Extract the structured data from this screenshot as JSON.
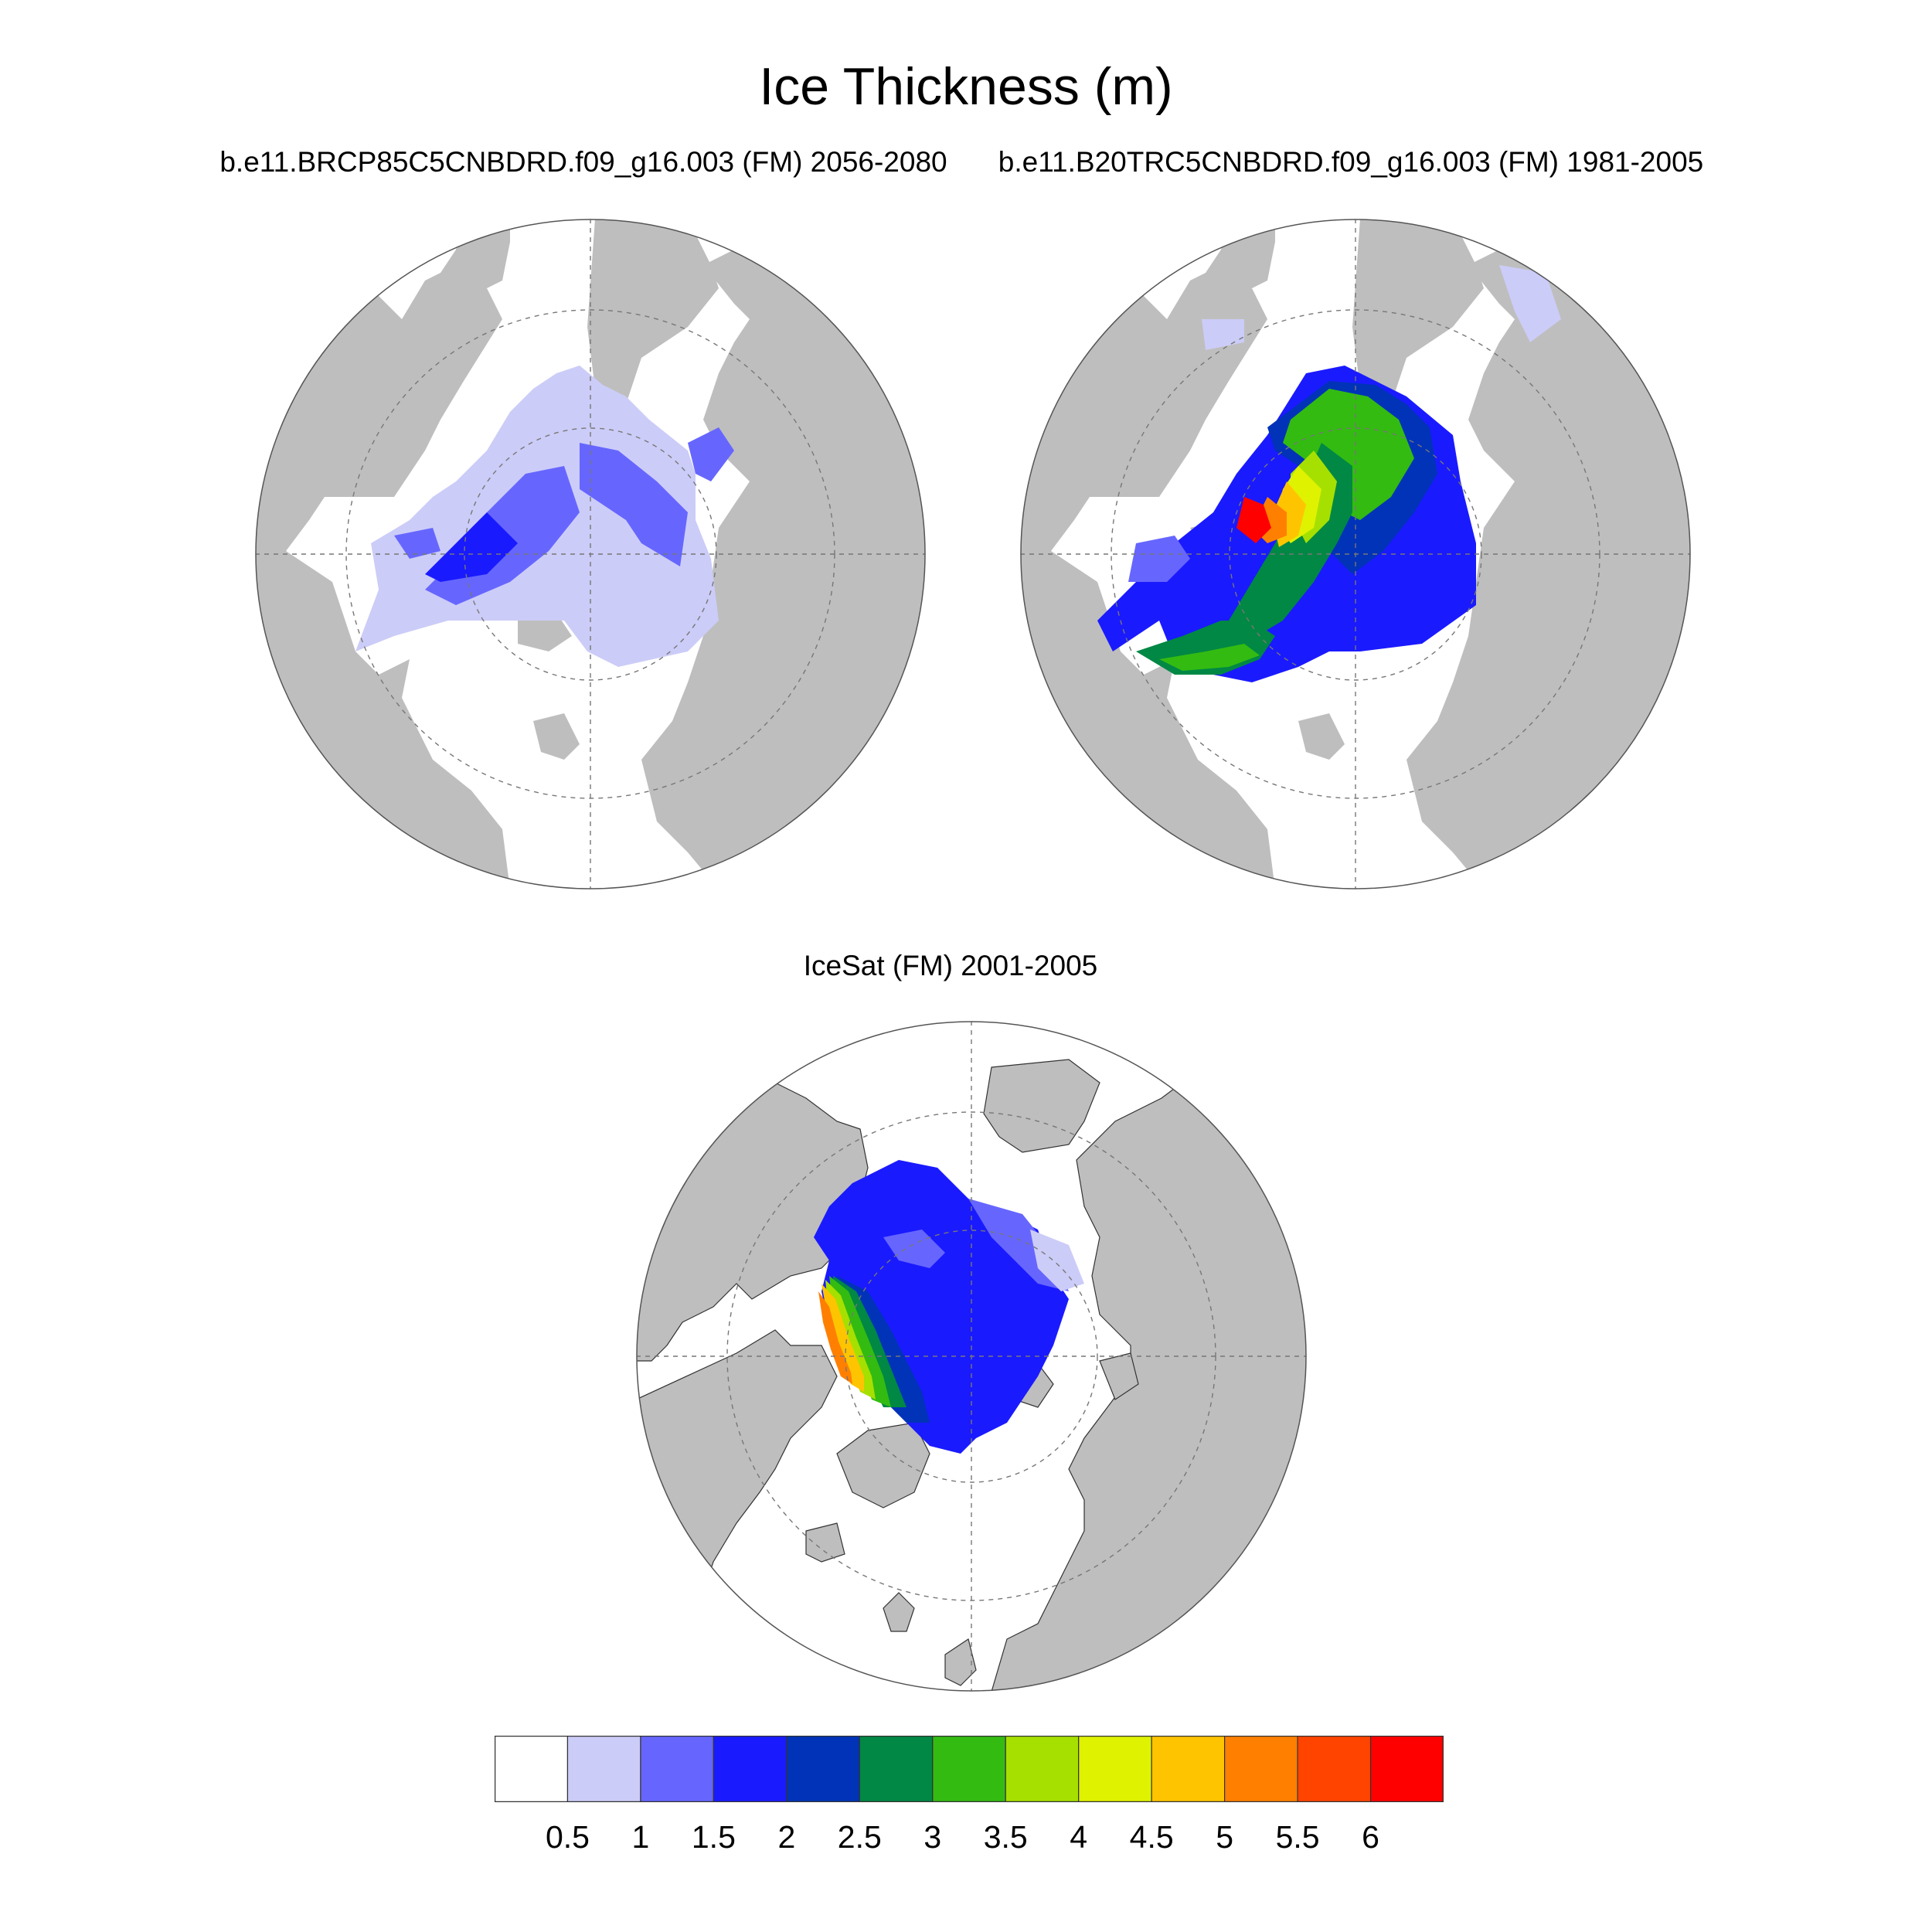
{
  "title": "Ice Thickness (m)",
  "panels": [
    {
      "id": "left",
      "subtitle": "b.e11.BRCP85C5CNBDRD.f09_g16.003 (FM) 2056-2080"
    },
    {
      "id": "right",
      "subtitle": "b.e11.B20TRC5CNBDRD.f09_g16.003 (FM) 1981-2005"
    },
    {
      "id": "bottom",
      "subtitle": "IceSat (FM) 2001-2005"
    }
  ],
  "colorbar": {
    "labels": [
      "0.5",
      "1",
      "1.5",
      "2",
      "2.5",
      "3",
      "3.5",
      "4",
      "4.5",
      "5",
      "5.5",
      "6"
    ],
    "colors": [
      "#ffffff",
      "#ccccf8",
      "#6666ff",
      "#1a1aff",
      "#0033b8",
      "#008844",
      "#33bb11",
      "#a6e000",
      "#dff200",
      "#ffc400",
      "#ff7f00",
      "#ff4400",
      "#ff0000"
    ]
  },
  "style": {
    "land_color": "#bebebe",
    "ocean_color": "#ffffff",
    "grid_color": "#777777"
  }
}
